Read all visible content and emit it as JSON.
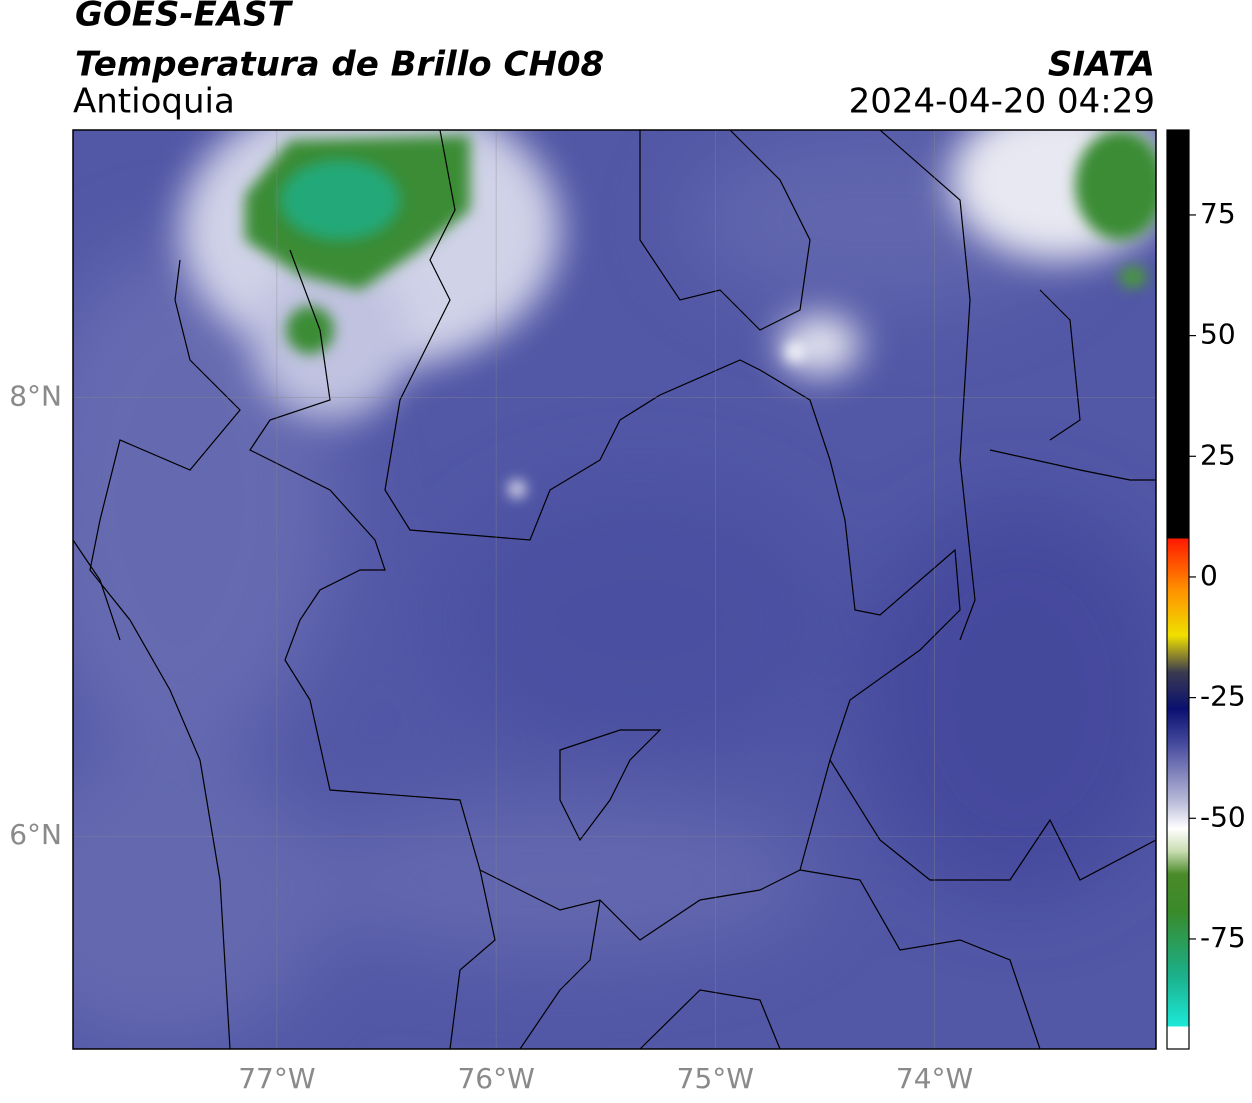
{
  "header": {
    "title": "GOES-EAST",
    "subtitle": "Temperatura de Brillo CH08",
    "region": "Antioquia",
    "source": "SIATA",
    "timestamp": "2024-04-20 04:29"
  },
  "map": {
    "xlim": [
      -77.93,
      -72.99
    ],
    "ylim": [
      5.03,
      9.22
    ],
    "xticks": [
      {
        "value": -77,
        "label": "77°W"
      },
      {
        "value": -76,
        "label": "76°W"
      },
      {
        "value": -75,
        "label": "75°W"
      },
      {
        "value": -74,
        "label": "74°W"
      }
    ],
    "yticks": [
      {
        "value": 8,
        "label": "8°N"
      },
      {
        "value": 6,
        "label": "6°N"
      }
    ]
  },
  "colorbar": {
    "lim": [
      -97.8,
      92.6
    ],
    "ticks": [
      -75,
      -50,
      -25,
      0,
      25,
      50,
      75
    ]
  }
}
